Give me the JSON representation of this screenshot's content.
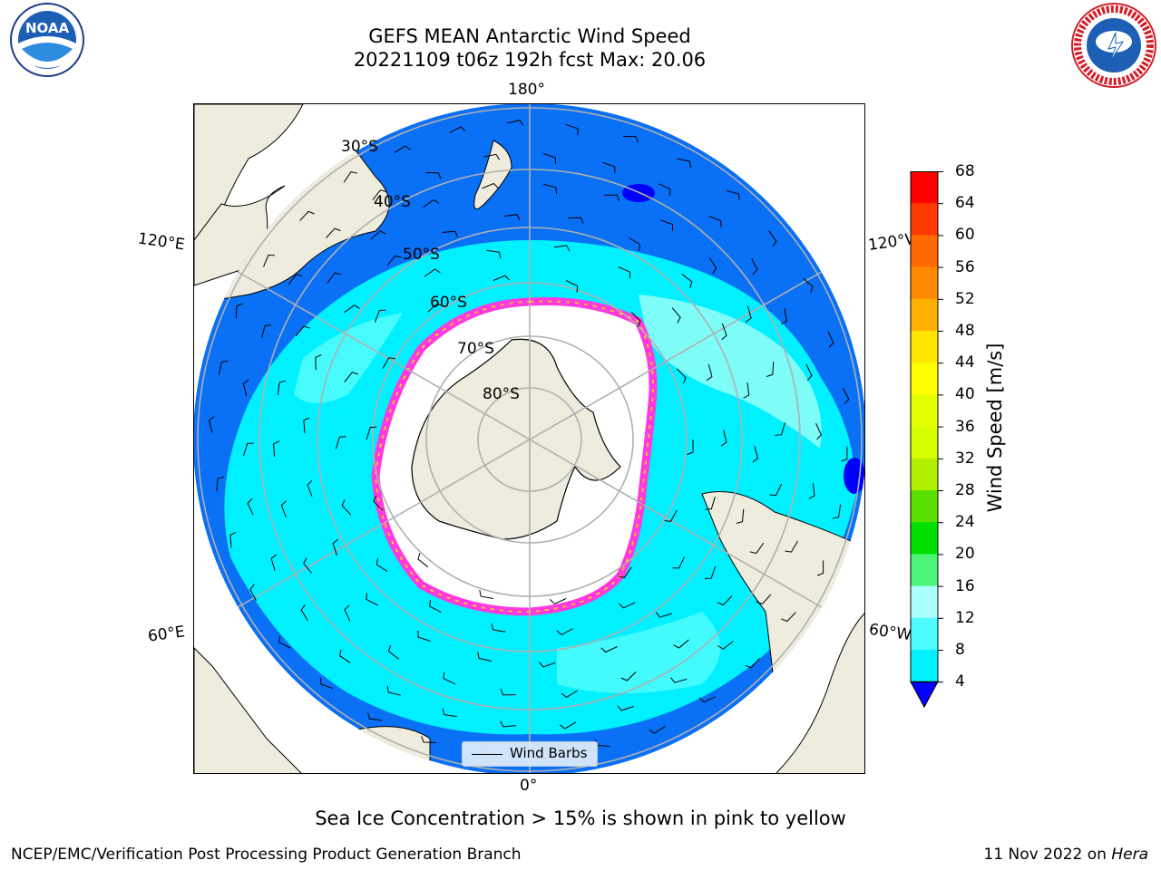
{
  "header": {
    "title_line1": "GEFS MEAN Antarctic Wind Speed",
    "title_line2": "20221109 t06z 192h fcst   Max: 20.06"
  },
  "logos": {
    "left": "noaa-logo",
    "right": "nws-logo",
    "left_text": "NOAA"
  },
  "map": {
    "longitude_labels": {
      "top": "180°",
      "bottom": "0°",
      "upper_left": "120°E",
      "upper_right": "120°W",
      "lower_left": "60°E",
      "lower_right": "60°W"
    },
    "latitude_labels": [
      "30°S",
      "40°S",
      "50°S",
      "60°S",
      "70°S",
      "80°S"
    ],
    "legend_label": "Wind Barbs",
    "colors": {
      "land": "#eeecdc",
      "ocean_low": "#0a70f5",
      "ocean_mid": "#00f0ff",
      "ocean_high": "#7dfcf8",
      "ice": "#ff38e0",
      "ice_yellow": "#ffc230"
    }
  },
  "colorbar": {
    "title": "Wind Speed [m/s]",
    "ticks": [
      "68",
      "64",
      "60",
      "56",
      "52",
      "48",
      "44",
      "40",
      "36",
      "32",
      "28",
      "24",
      "20",
      "16",
      "12",
      "8",
      "4"
    ],
    "colors": [
      "#0000ff",
      "#0a70f5",
      "#00f0ff",
      "#4ffcfd",
      "#aafffe",
      "#4cf479",
      "#00e000",
      "#5ae000",
      "#b0f000",
      "#d8ff00",
      "#e6ff00",
      "#ffff00",
      "#ffe600",
      "#ffb000",
      "#ff8a00",
      "#ff6a00",
      "#ff3a00",
      "#ff0000"
    ]
  },
  "footer": {
    "subtitle": "Sea Ice Concentration > 15% is shown in pink to yellow",
    "left": "NCEP/EMC/Verification Post Processing Product Generation Branch",
    "right_date": "11 Nov 2022 on ",
    "right_host": "Hera"
  }
}
